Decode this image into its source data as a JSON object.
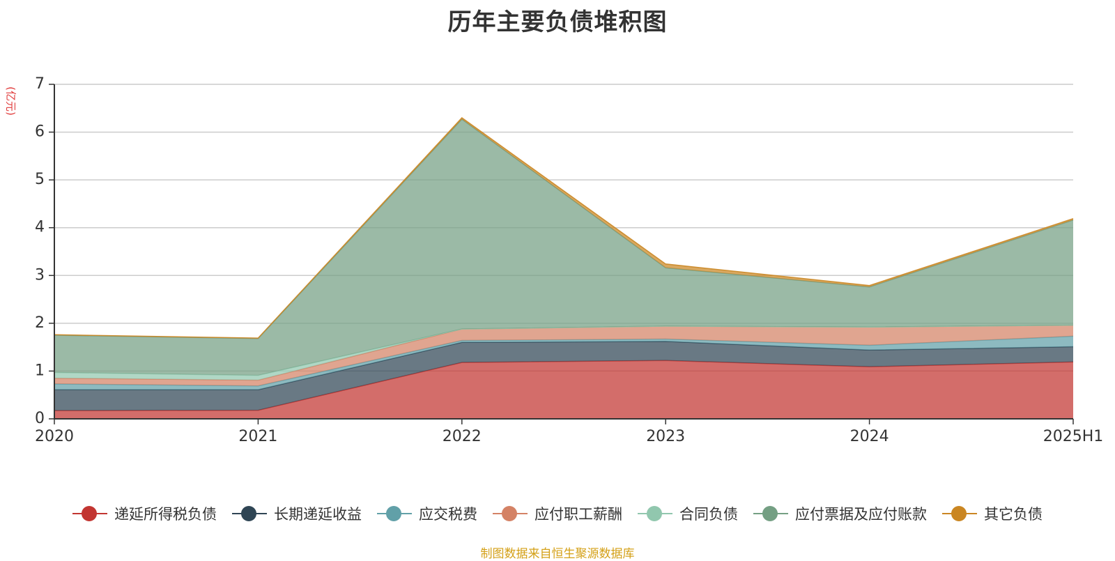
{
  "chart_data": {
    "type": "area",
    "stacked": true,
    "title": "历年主要负债堆积图",
    "ylabel": "(亿元)",
    "ylim": [
      0,
      7
    ],
    "yticks": [
      "0",
      "1",
      "2",
      "3",
      "4",
      "5",
      "6",
      "7"
    ],
    "categories": [
      "2020",
      "2021",
      "2022",
      "2023",
      "2024",
      "2025H1"
    ],
    "grid": true,
    "legend_position": "bottom",
    "series": [
      {
        "name": "递延所得税负债",
        "color": "#c23531",
        "values": [
          0.17,
          0.18,
          1.18,
          1.22,
          1.09,
          1.19
        ]
      },
      {
        "name": "长期递延收益",
        "color": "#2f4554",
        "values": [
          0.44,
          0.43,
          0.42,
          0.4,
          0.35,
          0.32
        ]
      },
      {
        "name": "应交税费",
        "color": "#61a0a8",
        "values": [
          0.12,
          0.08,
          0.04,
          0.05,
          0.1,
          0.22
        ]
      },
      {
        "name": "应付职工薪酬",
        "color": "#d48265",
        "values": [
          0.12,
          0.12,
          0.24,
          0.27,
          0.38,
          0.23
        ]
      },
      {
        "name": "合同负债",
        "color": "#91c7ae",
        "values": [
          0.12,
          0.1,
          0.0,
          0.0,
          0.0,
          0.0
        ]
      },
      {
        "name": "应付票据及应付账款",
        "color": "#749f83",
        "values": [
          0.78,
          0.77,
          4.39,
          1.22,
          0.84,
          2.2
        ]
      },
      {
        "name": "其它负债",
        "color": "#ca8622",
        "values": [
          0.01,
          0.01,
          0.03,
          0.08,
          0.03,
          0.03
        ]
      }
    ]
  },
  "footer": {
    "source": "制图数据来自恒生聚源数据库"
  }
}
